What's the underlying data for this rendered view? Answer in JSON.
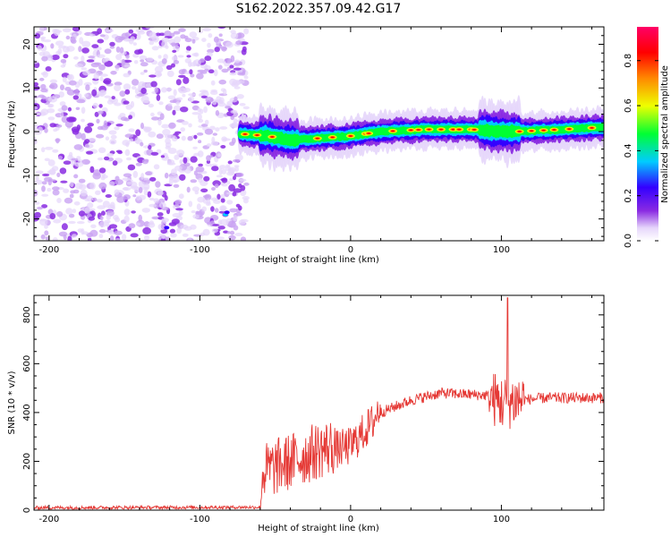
{
  "title": "S162.2022.357.09.42.G17",
  "chart_data": [
    {
      "type": "heatmap",
      "xlabel": "Height of straight line (km)",
      "ylabel": "Frequency (Hz)",
      "xlim": [
        -210,
        168
      ],
      "ylim": [
        -25,
        24
      ],
      "xticks": [
        -200,
        -100,
        0,
        100
      ],
      "yticks": [
        -20,
        -10,
        0,
        10,
        20
      ],
      "colorbar": {
        "label": "Normalized spectral amplitude",
        "range": [
          0,
          0.95
        ],
        "ticks": [
          "0.0",
          "0.2",
          "0.4",
          "0.6",
          "0.8"
        ],
        "tick_values": [
          0.0,
          0.2,
          0.4,
          0.6,
          0.8
        ],
        "colors": [
          "#ffffff",
          "#e6d6fb",
          "#8a2be2",
          "#3300ff",
          "#00ccff",
          "#00ff33",
          "#eeff00",
          "#ff8800",
          "#ff0000",
          "#ff0066"
        ]
      },
      "noise_region_x": [
        -210,
        -73
      ],
      "ridge": [
        {
          "x": -73,
          "y": -0.5
        },
        {
          "x": -55,
          "y": -1.0
        },
        {
          "x": -40,
          "y": -2.0
        },
        {
          "x": -20,
          "y": -1.5
        },
        {
          "x": 0,
          "y": -1.0
        },
        {
          "x": 20,
          "y": 0.0
        },
        {
          "x": 50,
          "y": 0.5
        },
        {
          "x": 80,
          "y": 0.5
        },
        {
          "x": 100,
          "y": 0.0
        },
        {
          "x": 110,
          "y": 0.0
        },
        {
          "x": 140,
          "y": 0.5
        },
        {
          "x": 168,
          "y": 1.0
        }
      ]
    },
    {
      "type": "line",
      "xlabel": "Height of straight line (km)",
      "ylabel": "SNR (10 * v/v)",
      "xlim": [
        -210,
        168
      ],
      "ylim": [
        0,
        880
      ],
      "xticks": [
        -200,
        -100,
        0,
        100
      ],
      "yticks": [
        0,
        200,
        400,
        600,
        800
      ],
      "color": "#e53935",
      "trend": [
        {
          "x": -210,
          "y": 10
        },
        {
          "x": -60,
          "y": 12
        },
        {
          "x": -58,
          "y": 110
        },
        {
          "x": -40,
          "y": 150
        },
        {
          "x": -20,
          "y": 200
        },
        {
          "x": 0,
          "y": 230
        },
        {
          "x": 15,
          "y": 330
        },
        {
          "x": 20,
          "y": 400
        },
        {
          "x": 40,
          "y": 450
        },
        {
          "x": 60,
          "y": 480
        },
        {
          "x": 90,
          "y": 470
        },
        {
          "x": 100,
          "y": 440
        },
        {
          "x": 110,
          "y": 450
        },
        {
          "x": 130,
          "y": 460
        },
        {
          "x": 168,
          "y": 460
        }
      ],
      "peak": {
        "x": 104,
        "y": 870
      }
    }
  ]
}
